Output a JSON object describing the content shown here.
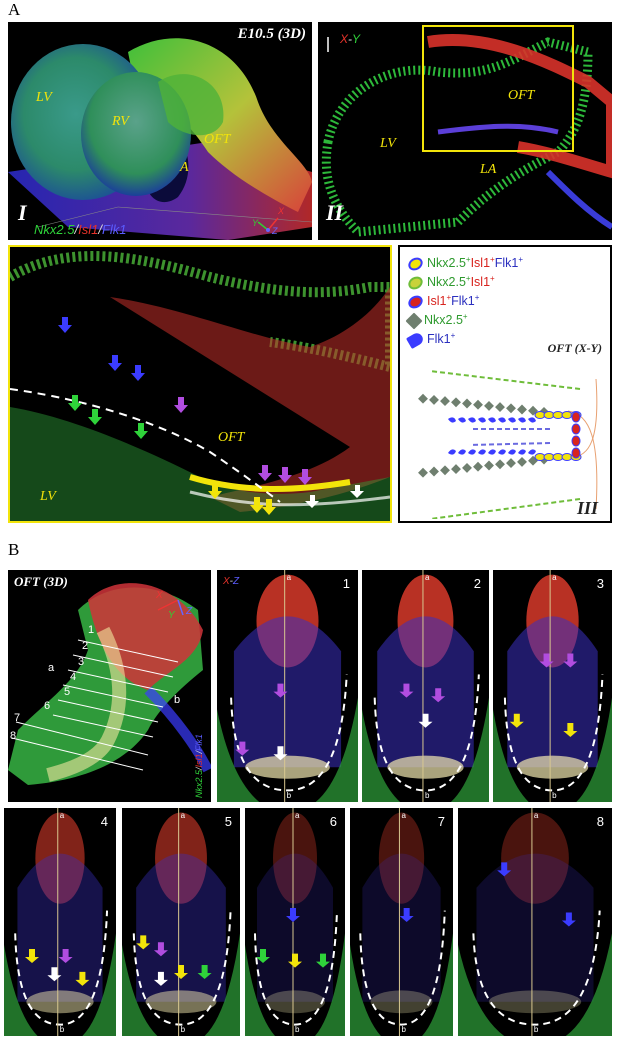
{
  "section_a": {
    "letter": "A"
  },
  "section_b": {
    "letter": "B"
  },
  "panel_i": {
    "title": "E10.5 (3D)",
    "numeral": "I",
    "labels": {
      "lv": "LV",
      "rv": "RV",
      "oft": "OFT",
      "a": "A"
    },
    "markers": {
      "nkx": "Nkx2.5",
      "isl": "Isl1",
      "flk": "Flk1",
      "sep": "/"
    },
    "axes": {
      "x": "X",
      "y": "Y",
      "z": "Z"
    }
  },
  "panel_ii": {
    "numeral": "II",
    "plane_x": "X",
    "plane_dash": "-",
    "plane_y": "Y",
    "labels": {
      "oft": "OFT",
      "lv": "LV",
      "la": "LA"
    }
  },
  "panel_zoom": {
    "labels": {
      "oft": "OFT",
      "lv": "LV"
    }
  },
  "legend": {
    "items": [
      {
        "segments": [
          {
            "t": "Nkx2.5",
            "c": "#2e9a2e"
          },
          {
            "t": "+",
            "c": "#2e9a2e",
            "sup": true
          },
          {
            "t": "Isl1",
            "c": "#d8241f"
          },
          {
            "t": "+",
            "c": "#d8241f",
            "sup": true
          },
          {
            "t": "Flk1",
            "c": "#2b2fbf"
          },
          {
            "t": "+",
            "c": "#2b2fbf",
            "sup": true
          }
        ]
      },
      {
        "segments": [
          {
            "t": "Nkx2.5",
            "c": "#2e9a2e"
          },
          {
            "t": "+",
            "c": "#2e9a2e",
            "sup": true
          },
          {
            "t": "Isl1",
            "c": "#d8241f"
          },
          {
            "t": "+",
            "c": "#d8241f",
            "sup": true
          }
        ]
      },
      {
        "segments": [
          {
            "t": "Isl1",
            "c": "#d8241f"
          },
          {
            "t": "+",
            "c": "#d8241f",
            "sup": true
          },
          {
            "t": "Flk1",
            "c": "#2b2fbf"
          },
          {
            "t": "+",
            "c": "#2b2fbf",
            "sup": true
          }
        ]
      },
      {
        "segments": [
          {
            "t": "Nkx2.5",
            "c": "#2e9a2e"
          },
          {
            "t": "+",
            "c": "#2e9a2e",
            "sup": true
          }
        ]
      },
      {
        "segments": [
          {
            "t": "Flk1",
            "c": "#2b2fbf"
          },
          {
            "t": "+",
            "c": "#2b2fbf",
            "sup": true
          }
        ]
      }
    ],
    "title": "OFT (X-Y)",
    "numeral": "III"
  },
  "panel_b_3d": {
    "title": "OFT (3D)",
    "slices": [
      "1",
      "2",
      "3",
      "4",
      "5",
      "6",
      "7",
      "8"
    ],
    "side_a": "a",
    "side_b": "b",
    "axes": {
      "x": "X",
      "y": "Y",
      "z": "Z"
    },
    "markers_vertical": {
      "nkx": "Nkx2.5",
      "isl": "Isl1",
      "flk": "Flk1",
      "sep": "/"
    }
  },
  "sections": {
    "plane_x": "X",
    "plane_dash": "-",
    "plane_z": "Z",
    "top": "a",
    "bottom": "b",
    "numbers": [
      "1",
      "2",
      "3",
      "4",
      "5",
      "6",
      "7",
      "8"
    ]
  },
  "colors": {
    "green": "#2fd33a",
    "red": "#e4322a",
    "blue": "#3b3cff",
    "yellow": "#f2e40a",
    "purple": "#b14de0",
    "white": "#ffffff"
  }
}
